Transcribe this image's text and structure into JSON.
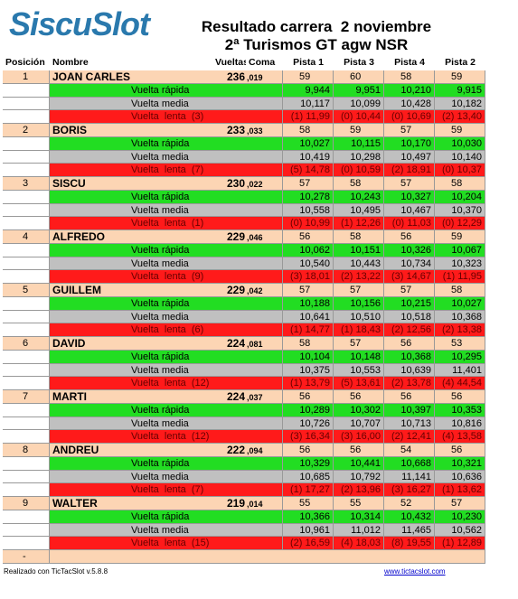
{
  "header": {
    "logo": "SiscuSlot",
    "title": "Resultado carrera  2 noviembre",
    "subtitle": "2ª Turismos GT agw NSR"
  },
  "table": {
    "columns": [
      "Posición",
      "Nombre",
      "Vueltas",
      "Coma",
      "Pista 1",
      "Pista 3",
      "Pista 4",
      "Pista 2"
    ],
    "drivers": [
      {
        "position": "1",
        "name": "JOAN CARLES",
        "laps": "236",
        "fraction": ",019",
        "tracks": [
          "59",
          "60",
          "58",
          "59"
        ],
        "fast_label": "Vuelta rápida",
        "fast": [
          "9,944",
          "9,951",
          "10,210",
          "9,915"
        ],
        "avg_label": "Vuelta media",
        "avg": [
          "10,117",
          "10,099",
          "10,428",
          "10,182"
        ],
        "slow_label": "Vuelta  lenta  (3)",
        "slow": [
          "(1) 11,99",
          "(0) 10,44",
          "(0) 10,69",
          "(2) 13,40"
        ]
      },
      {
        "position": "2",
        "name": "BORIS",
        "laps": "233",
        "fraction": ",033",
        "tracks": [
          "58",
          "59",
          "57",
          "59"
        ],
        "fast_label": "Vuelta rápida",
        "fast": [
          "10,027",
          "10,115",
          "10,170",
          "10,030"
        ],
        "avg_label": "Vuelta media",
        "avg": [
          "10,419",
          "10,298",
          "10,497",
          "10,140"
        ],
        "slow_label": "Vuelta  lenta  (7)",
        "slow": [
          "(5) 14,78",
          "(0) 10,59",
          "(2) 18,91",
          "(0) 10,37"
        ]
      },
      {
        "position": "3",
        "name": "SISCU",
        "laps": "230",
        "fraction": ",022",
        "tracks": [
          "57",
          "58",
          "57",
          "58"
        ],
        "fast_label": "Vuelta rápida",
        "fast": [
          "10,278",
          "10,243",
          "10,327",
          "10,204"
        ],
        "avg_label": "Vuelta media",
        "avg": [
          "10,558",
          "10,495",
          "10,467",
          "10,370"
        ],
        "slow_label": "Vuelta  lenta  (1)",
        "slow": [
          "(0) 10,99",
          "(1) 12,26",
          "(0) 11,03",
          "(0) 12,29"
        ]
      },
      {
        "position": "4",
        "name": "ALFREDO",
        "laps": "229",
        "fraction": ",046",
        "tracks": [
          "56",
          "58",
          "56",
          "59"
        ],
        "fast_label": "Vuelta rápida",
        "fast": [
          "10,062",
          "10,151",
          "10,326",
          "10,067"
        ],
        "avg_label": "Vuelta media",
        "avg": [
          "10,540",
          "10,443",
          "10,734",
          "10,323"
        ],
        "slow_label": "Vuelta  lenta  (9)",
        "slow": [
          "(3) 18,01",
          "(2) 13,22",
          "(3) 14,67",
          "(1) 11,95"
        ]
      },
      {
        "position": "5",
        "name": "GUILLEM",
        "laps": "229",
        "fraction": ",042",
        "tracks": [
          "57",
          "57",
          "57",
          "58"
        ],
        "fast_label": "Vuelta rápida",
        "fast": [
          "10,188",
          "10,156",
          "10,215",
          "10,027"
        ],
        "avg_label": "Vuelta media",
        "avg": [
          "10,641",
          "10,510",
          "10,518",
          "10,368"
        ],
        "slow_label": "Vuelta  lenta  (6)",
        "slow": [
          "(1) 14,77",
          "(1) 18,43",
          "(2) 12,56",
          "(2) 13,38"
        ]
      },
      {
        "position": "6",
        "name": "DAVID",
        "laps": "224",
        "fraction": ",081",
        "tracks": [
          "58",
          "57",
          "56",
          "53"
        ],
        "fast_label": "Vuelta rápida",
        "fast": [
          "10,104",
          "10,148",
          "10,368",
          "10,295"
        ],
        "avg_label": "Vuelta media",
        "avg": [
          "10,375",
          "10,553",
          "10,639",
          "11,401"
        ],
        "slow_label": "Vuelta  lenta  (12)",
        "slow": [
          "(1) 13,79",
          "(5) 13,61",
          "(2) 13,78",
          "(4) 44,54"
        ]
      },
      {
        "position": "7",
        "name": "MARTI",
        "laps": "224",
        "fraction": ",037",
        "tracks": [
          "56",
          "56",
          "56",
          "56"
        ],
        "fast_label": "Vuelta rápida",
        "fast": [
          "10,289",
          "10,302",
          "10,397",
          "10,353"
        ],
        "avg_label": "Vuelta media",
        "avg": [
          "10,726",
          "10,707",
          "10,713",
          "10,816"
        ],
        "slow_label": "Vuelta  lenta  (12)",
        "slow": [
          "(3) 16,34",
          "(3) 16,00",
          "(2) 12,41",
          "(4) 13,58"
        ]
      },
      {
        "position": "8",
        "name": "ANDREU",
        "laps": "222",
        "fraction": ",094",
        "tracks": [
          "56",
          "56",
          "54",
          "56"
        ],
        "fast_label": "Vuelta rápida",
        "fast": [
          "10,329",
          "10,441",
          "10,668",
          "10,321"
        ],
        "avg_label": "Vuelta media",
        "avg": [
          "10,685",
          "10,792",
          "11,141",
          "10,636"
        ],
        "slow_label": "Vuelta  lenta  (7)",
        "slow": [
          "(1) 17,27",
          "(2) 13,96",
          "(3) 16,27",
          "(1) 13,62"
        ]
      },
      {
        "position": "9",
        "name": "WALTER",
        "laps": "219",
        "fraction": ",014",
        "tracks": [
          "55",
          "55",
          "52",
          "57"
        ],
        "fast_label": "Vuelta rápida",
        "fast": [
          "10,366",
          "10,314",
          "10,432",
          "10,230"
        ],
        "avg_label": "Vuelta media",
        "avg": [
          "10,961",
          "11,012",
          "11,465",
          "10,562"
        ],
        "slow_label": "Vuelta  lenta  (15)",
        "slow": [
          "(2) 16,59",
          "(4) 18,03",
          "(8) 19,55",
          "(1) 12,89"
        ]
      }
    ],
    "empty_row": "-"
  },
  "footer": {
    "left": "Realizado con TicTacSlot v.5.8.8",
    "right": "www.tictacslot.com"
  }
}
